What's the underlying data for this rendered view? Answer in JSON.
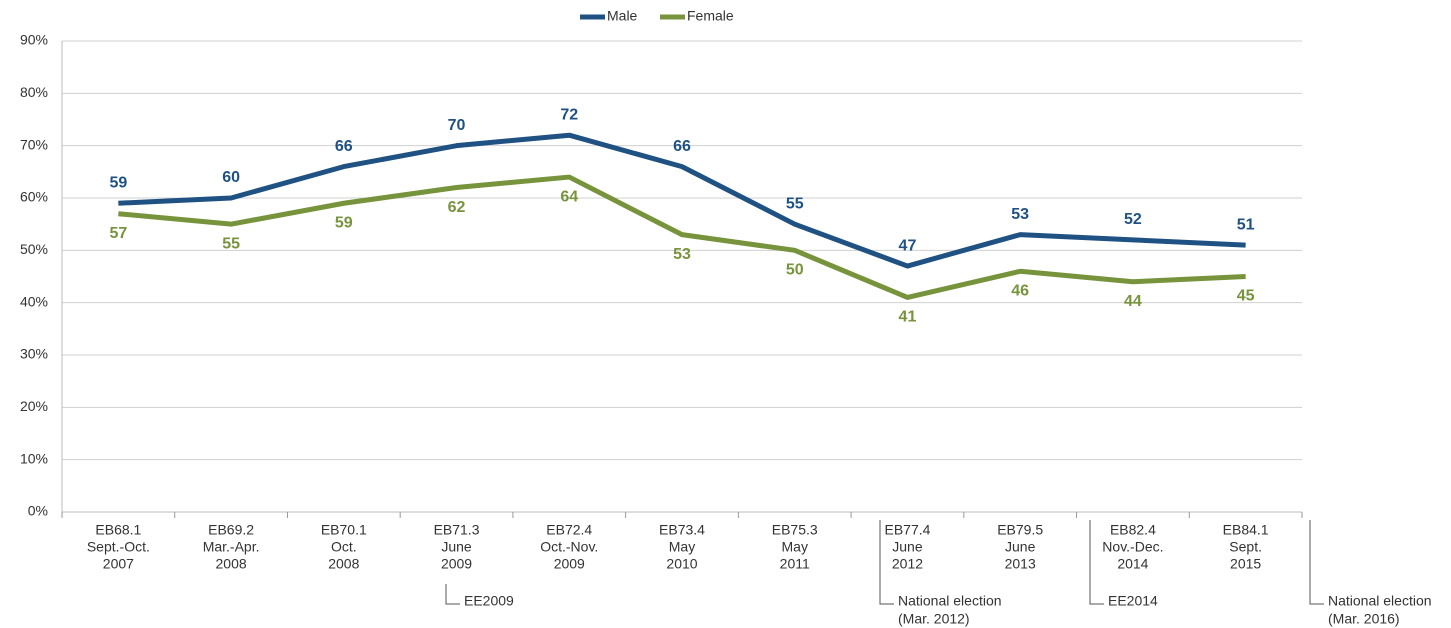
{
  "chart_data": {
    "type": "line",
    "categories": [
      [
        "EB68.1",
        "Sept.-Oct.",
        "2007"
      ],
      [
        "EB69.2",
        "Mar.-Apr.",
        "2008"
      ],
      [
        "EB70.1",
        "Oct.",
        "2008"
      ],
      [
        "EB71.3",
        "June",
        "2009"
      ],
      [
        "EB72.4",
        "Oct.-Nov.",
        "2009"
      ],
      [
        "EB73.4",
        "May",
        "2010"
      ],
      [
        "EB75.3",
        "May",
        "2011"
      ],
      [
        "EB77.4",
        "June",
        "2012"
      ],
      [
        "EB79.5",
        "June",
        "2013"
      ],
      [
        "EB82.4",
        "Nov.-Dec.",
        "2014"
      ],
      [
        "EB84.1",
        "Sept.",
        "2015"
      ]
    ],
    "series": [
      {
        "name": "Male",
        "color": "#1f5283",
        "values": [
          59,
          60,
          66,
          70,
          72,
          66,
          55,
          47,
          53,
          52,
          51
        ]
      },
      {
        "name": "Female",
        "color": "#77933c",
        "values": [
          57,
          55,
          59,
          62,
          64,
          53,
          50,
          41,
          46,
          44,
          45
        ]
      }
    ],
    "ylim": [
      0,
      90
    ],
    "yticks": [
      {
        "value": 0,
        "label": "0%"
      },
      {
        "value": 10,
        "label": "10%"
      },
      {
        "value": 20,
        "label": "20%"
      },
      {
        "value": 30,
        "label": "30%"
      },
      {
        "value": 40,
        "label": "40%"
      },
      {
        "value": 50,
        "label": "50%"
      },
      {
        "value": 60,
        "label": "60%"
      },
      {
        "value": 70,
        "label": "70%"
      },
      {
        "value": 80,
        "label": "80%"
      },
      {
        "value": 90,
        "label": "90%"
      }
    ],
    "grid": true,
    "legend": "top",
    "annotations": [
      [
        "EE2009"
      ],
      [
        "National election",
        "(Mar. 2012)"
      ],
      [
        "EE2014"
      ],
      [
        "National election",
        "(Mar. 2016)"
      ]
    ]
  }
}
